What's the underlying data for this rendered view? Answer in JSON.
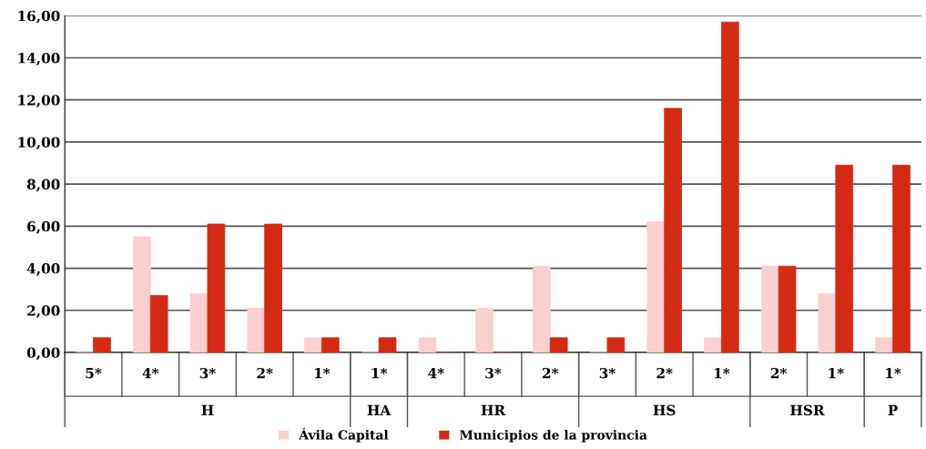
{
  "chart_data": {
    "type": "bar",
    "categories": [
      "5*",
      "4*",
      "3*",
      "2*",
      "1*",
      "1*",
      "4*",
      "3*",
      "2*",
      "3*",
      "2*",
      "1*",
      "2*",
      "1*",
      "1*"
    ],
    "series": [
      {
        "name": "Ávila Capital",
        "color": "#f9cfcf",
        "values": [
          0,
          5.5,
          2.8,
          2.1,
          0.7,
          0,
          0.7,
          2.1,
          4.1,
          0,
          6.2,
          0.7,
          4.1,
          2.8,
          0.7
        ]
      },
      {
        "name": "Municipios de la provincia",
        "color": "#d42a14",
        "values": [
          0.7,
          2.7,
          6.1,
          6.1,
          0.7,
          0.7,
          0,
          0,
          0.7,
          0.7,
          11.6,
          15.7,
          4.1,
          8.9,
          8.9
        ]
      }
    ],
    "annotations": [
      "H",
      "HA",
      "HR",
      "HS",
      "HSR",
      "P"
    ],
    "ylim": [
      0,
      16
    ],
    "yticks": [
      {
        "value": 0,
        "label": "0,00"
      },
      {
        "value": 2,
        "label": "2,00"
      },
      {
        "value": 4,
        "label": "4,00"
      },
      {
        "value": 6,
        "label": "6,00"
      },
      {
        "value": 8,
        "label": "8,00"
      },
      {
        "value": 10,
        "label": "10,00"
      },
      {
        "value": 12,
        "label": "12,00"
      },
      {
        "value": 14,
        "label": "14,00"
      },
      {
        "value": 16,
        "label": "16,00"
      }
    ],
    "grid": "y",
    "legend": "bottom"
  }
}
